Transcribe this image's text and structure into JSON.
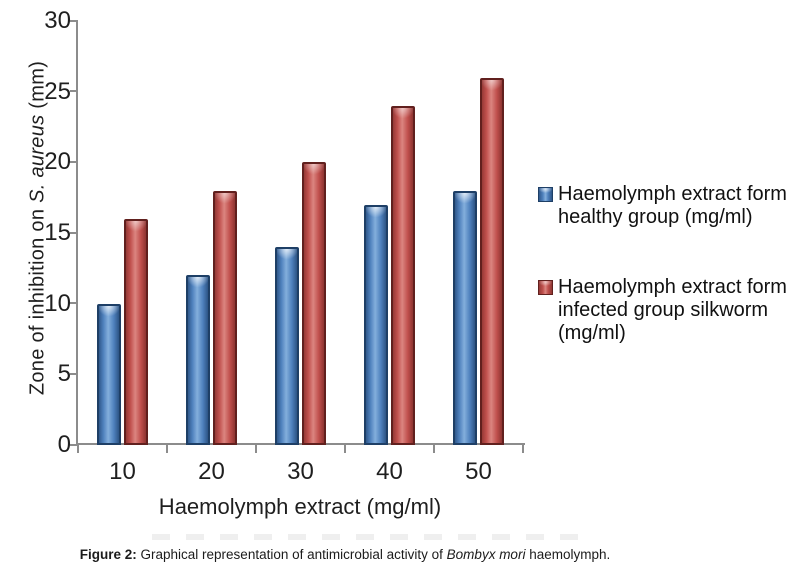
{
  "chart_data": {
    "type": "bar",
    "title": "",
    "categories": [
      "10",
      "20",
      "30",
      "40",
      "50"
    ],
    "series": [
      {
        "name": "Haemolymph extract form healthy group (mg/ml)",
        "color": "#4f81bd",
        "values": [
          10,
          12,
          14,
          17,
          18
        ]
      },
      {
        "name": "Haemolymph extract form infected group silkworm (mg/ml)",
        "color": "#c0504d",
        "values": [
          16,
          18,
          20,
          24,
          26
        ]
      }
    ],
    "xlabel": "Haemolymph extract (mg/ml)",
    "ylabel_parts": {
      "pre": "Zone of inhibition on ",
      "italic": "S. aureus",
      "post": " (mm)"
    },
    "ylim": [
      0,
      30
    ],
    "yticks": [
      0,
      5,
      10,
      15,
      20,
      25,
      30
    ],
    "grid": false,
    "legend_position": "right"
  },
  "legend": {
    "items": [
      {
        "swatch": "blue",
        "lines": [
          "Haemolymph extract form",
          "healthy group (mg/ml)"
        ]
      },
      {
        "swatch": "red",
        "lines": [
          "Haemolymph extract form",
          "infected group silkworm",
          "(mg/ml)"
        ]
      }
    ]
  },
  "caption": {
    "prefix": "Figure 2:",
    "body": " Graphical representation of antimicrobial activity of ",
    "italic": "Bombyx mori",
    "suffix": " haemolymph."
  }
}
